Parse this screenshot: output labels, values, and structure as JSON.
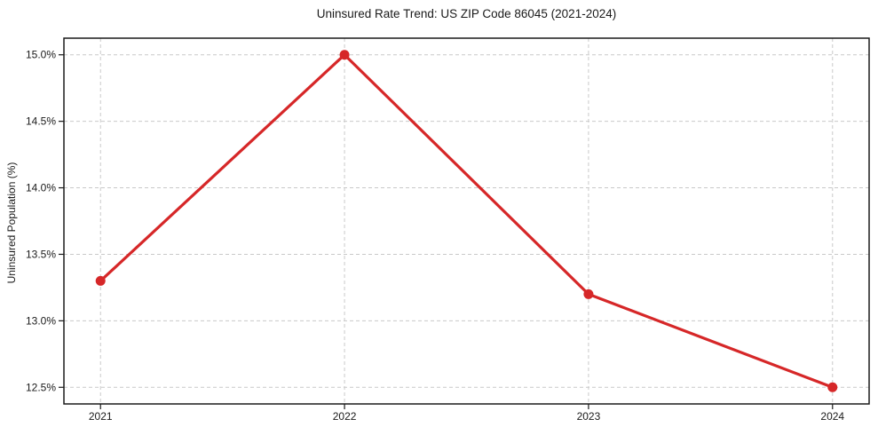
{
  "chart_data": {
    "type": "line",
    "title": "Uninsured Rate Trend: US ZIP Code 86045 (2021-2024)",
    "xlabel": "",
    "ylabel": "Uninsured Population (%)",
    "x": [
      2021,
      2022,
      2023,
      2024
    ],
    "values": [
      13.3,
      15.0,
      13.2,
      12.5
    ],
    "x_tick_labels": [
      "2021",
      "2022",
      "2023",
      "2024"
    ],
    "y_ticks": [
      12.5,
      13.0,
      13.5,
      14.0,
      14.5,
      15.0
    ],
    "y_tick_labels": [
      "12.5%",
      "13.0%",
      "13.5%",
      "14.0%",
      "14.5%",
      "15.0%"
    ],
    "xlim": [
      2020.85,
      2024.15
    ],
    "ylim": [
      12.375,
      15.125
    ],
    "grid": true,
    "grid_style": "dashed",
    "legend": false,
    "line_color": "#d62728",
    "marker_color": "#d62728",
    "grid_color": "#c9c9c9",
    "axis_color": "#1a1a1a",
    "background": "#ffffff"
  }
}
